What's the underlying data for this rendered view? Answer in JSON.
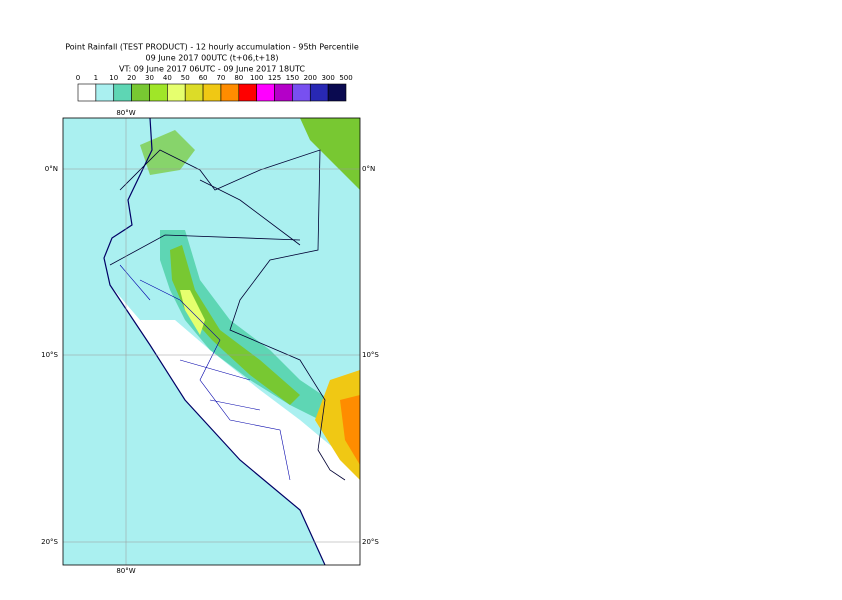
{
  "header": {
    "title_lines": [
      "Point Rainfall (TEST PRODUCT) - 12 hourly accumulation - 95th Percentile",
      "09 June 2017 00UTC (t+06,t+18)",
      "VT: 09 June 2017 06UTC - 09 June 2017 18UTC"
    ]
  },
  "colorbar": {
    "labels": [
      "0",
      "1",
      "10",
      "20",
      "30",
      "40",
      "50",
      "60",
      "70",
      "80",
      "100",
      "125",
      "150",
      "200",
      "300",
      "500"
    ],
    "colors": [
      "#ffffff",
      "#aaf0f0",
      "#5ed6b4",
      "#78c832",
      "#a0e628",
      "#e6ff6e",
      "#dcdc28",
      "#f0c814",
      "#ff8c00",
      "#ff0000",
      "#ff00ff",
      "#b400c8",
      "#7850f0",
      "#2828b4",
      "#0a0a50"
    ]
  },
  "map": {
    "lon_labels": [
      "80°W"
    ],
    "lat_labels": [
      "0°N",
      "10°S",
      "20°S"
    ]
  }
}
